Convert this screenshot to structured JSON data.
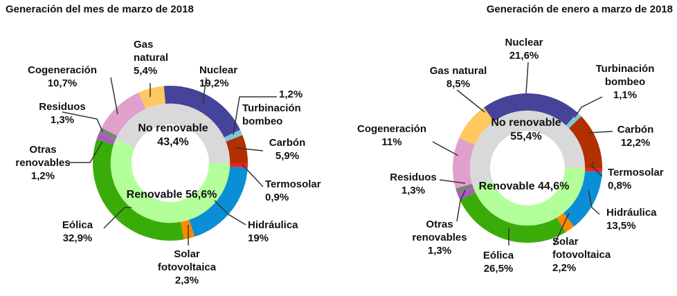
{
  "colors": {
    "Nuclear": "#46439a",
    "Turbinación bombeo": "#7ec8dc",
    "Carbón": "#b03000",
    "Termosolar": "#ff1a1a",
    "Hidráulica": "#0a8fd6",
    "Solar fotovoltaica": "#ff8800",
    "Eólica": "#3aac0a",
    "Otras renovables": "#b055c8",
    "Residuos": "#808080",
    "Cogeneración": "#e0a0cc",
    "Gas natural": "#ffc860",
    "No renovable": "#d9d9d9",
    "Renovable": "#b3ff99"
  },
  "chart_data": [
    {
      "type": "pie",
      "style": "nested donut",
      "title": "Generación del mes de marzo de 2018",
      "inner": [
        {
          "name": "Renovable",
          "value": 56.6,
          "label": "Renovable 56,6%"
        },
        {
          "name": "No renovable",
          "value": 43.4,
          "label": "No renovable\n43,4%"
        }
      ],
      "outer": [
        {
          "name": "Termosolar",
          "value": 0.9,
          "label": "Termosolar\n0,9%"
        },
        {
          "name": "Hidráulica",
          "value": 19,
          "label": "Hidráulica\n19%"
        },
        {
          "name": "Solar fotovoltaica",
          "value": 2.3,
          "label": "Solar\nfotovoltaica\n2,3%"
        },
        {
          "name": "Eólica",
          "value": 32.9,
          "label": "Eólica\n32,9%"
        },
        {
          "name": "Otras renovables",
          "value": 1.2,
          "label": "Otras\nrenovables\n1,2%"
        },
        {
          "name": "Residuos",
          "value": 1.3,
          "label": "Residuos\n1,3%"
        },
        {
          "name": "Cogeneración",
          "value": 10.7,
          "label": "Cogeneración\n10,7%"
        },
        {
          "name": "Gas natural",
          "value": 5.4,
          "label": "Gas\nnatural\n5,4%"
        },
        {
          "name": "Nuclear",
          "value": 19.2,
          "label": "Nuclear\n19,2%"
        },
        {
          "name": "Turbinación bombeo",
          "value": 1.2,
          "label": "Turbinación\nbombeo",
          "value_label": "1,2%"
        },
        {
          "name": "Carbón",
          "value": 5.9,
          "label": "Carbón\n5,9%"
        }
      ]
    },
    {
      "type": "pie",
      "style": "nested donut",
      "title": "Generación de enero a marzo de 2018",
      "inner": [
        {
          "name": "Renovable",
          "value": 44.6,
          "label": "Renovable 44,6%"
        },
        {
          "name": "No renovable",
          "value": 55.4,
          "label": "No renovable\n55,4%"
        }
      ],
      "outer": [
        {
          "name": "Termosolar",
          "value": 0.8,
          "label": "Termosolar\n0,8%"
        },
        {
          "name": "Hidráulica",
          "value": 13.5,
          "label": "Hidráulica\n13,5%"
        },
        {
          "name": "Solar fotovoltaica",
          "value": 2.2,
          "label": "Solar\nfotovoltaica\n2,2%"
        },
        {
          "name": "Eólica",
          "value": 26.5,
          "label": "Eólica\n26,5%"
        },
        {
          "name": "Otras renovables",
          "value": 1.3,
          "label": "Otras\nrenovables\n1,3%"
        },
        {
          "name": "Residuos",
          "value": 1.3,
          "label": "Residuos\n1,3%"
        },
        {
          "name": "Cogeneración",
          "value": 11,
          "label": "Cogeneración\n11%"
        },
        {
          "name": "Gas natural",
          "value": 8.5,
          "label": "Gas natural\n8,5%"
        },
        {
          "name": "Nuclear",
          "value": 21.6,
          "label": "Nuclear\n21,6%"
        },
        {
          "name": "Turbinación bombeo",
          "value": 1.1,
          "label": "Turbinación\nbombeo\n1,1%"
        },
        {
          "name": "Carbón",
          "value": 12.2,
          "label": "Carbón\n12,2%"
        }
      ]
    }
  ]
}
